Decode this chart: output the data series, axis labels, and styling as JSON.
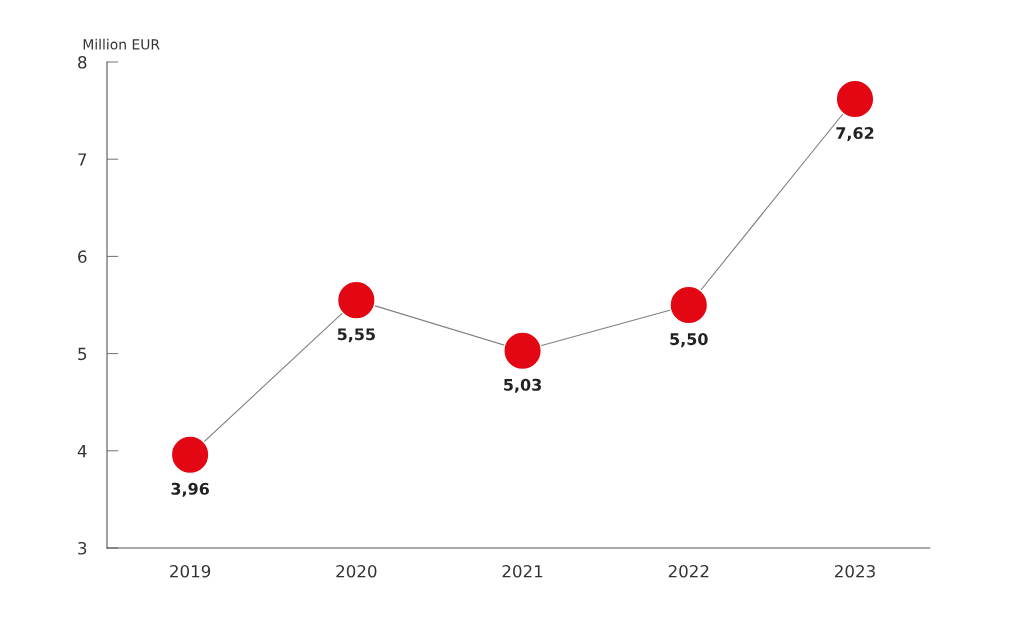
{
  "chart_data": {
    "type": "line",
    "ylabel": "Million EUR",
    "categories": [
      "2019",
      "2020",
      "2021",
      "2022",
      "2023"
    ],
    "series": [
      {
        "color": "#e30613",
        "values": [
          3.96,
          5.55,
          5.03,
          5.5,
          7.62
        ],
        "value_labels": [
          "3,96",
          "5,55",
          "5,03",
          "5,50",
          "7,62"
        ]
      }
    ],
    "ylim": [
      3,
      8
    ],
    "yticks": [
      3,
      4,
      5,
      6,
      7,
      8
    ],
    "grid": false,
    "legend": false,
    "marker": "circle",
    "line_style": "solid"
  }
}
